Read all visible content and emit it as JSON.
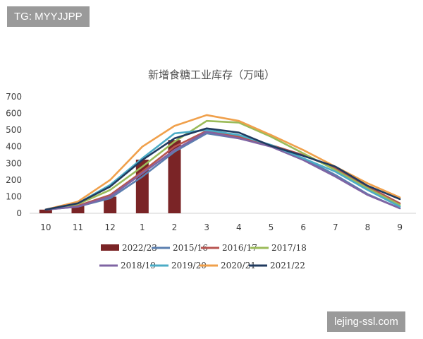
{
  "watermarks": {
    "top": "TG: MYYJJPP",
    "bottom": "lejing-ssl.com"
  },
  "chart_data": {
    "type": "line",
    "title": "新增食糖工业库存（万吨）",
    "xlabel": "",
    "ylabel": "",
    "categories": [
      "10",
      "11",
      "12",
      "1",
      "2",
      "3",
      "4",
      "5",
      "6",
      "7",
      "8",
      "9"
    ],
    "ylim": [
      0,
      700
    ],
    "yticks": [
      "0",
      "100",
      "200",
      "300",
      "400",
      "500",
      "600",
      "700"
    ],
    "grid": false,
    "legend_position": "bottom",
    "bar_series": {
      "name": "2022/23",
      "color": "#7a2426",
      "values": [
        22,
        48,
        100,
        322,
        440
      ]
    },
    "series": [
      {
        "name": "2015/16",
        "color": "#5b7fb0",
        "values": [
          22,
          40,
          90,
          220,
          370,
          480,
          450,
          405,
          330,
          230,
          115,
          30
        ]
      },
      {
        "name": "2016/17",
        "color": "#b85450",
        "values": [
          22,
          45,
          110,
          250,
          400,
          495,
          460,
          410,
          350,
          270,
          160,
          60
        ]
      },
      {
        "name": "2017/18",
        "color": "#9bbb59",
        "values": [
          22,
          55,
          140,
          280,
          430,
          555,
          545,
          460,
          360,
          260,
          150,
          50
        ]
      },
      {
        "name": "2018/19",
        "color": "#7f64a3",
        "values": [
          22,
          40,
          100,
          240,
          380,
          490,
          450,
          400,
          320,
          220,
          110,
          30
        ]
      },
      {
        "name": "2019/20",
        "color": "#4bacc6",
        "values": [
          22,
          60,
          170,
          330,
          480,
          500,
          470,
          410,
          330,
          250,
          140,
          40
        ]
      },
      {
        "name": "2020/21",
        "color": "#f0a04b",
        "values": [
          22,
          70,
          200,
          400,
          525,
          590,
          555,
          470,
          380,
          280,
          180,
          95
        ]
      },
      {
        "name": "2021/22",
        "color": "#1f3a5f",
        "values": [
          22,
          60,
          160,
          320,
          450,
          510,
          485,
          405,
          345,
          280,
          165,
          85
        ]
      }
    ]
  }
}
